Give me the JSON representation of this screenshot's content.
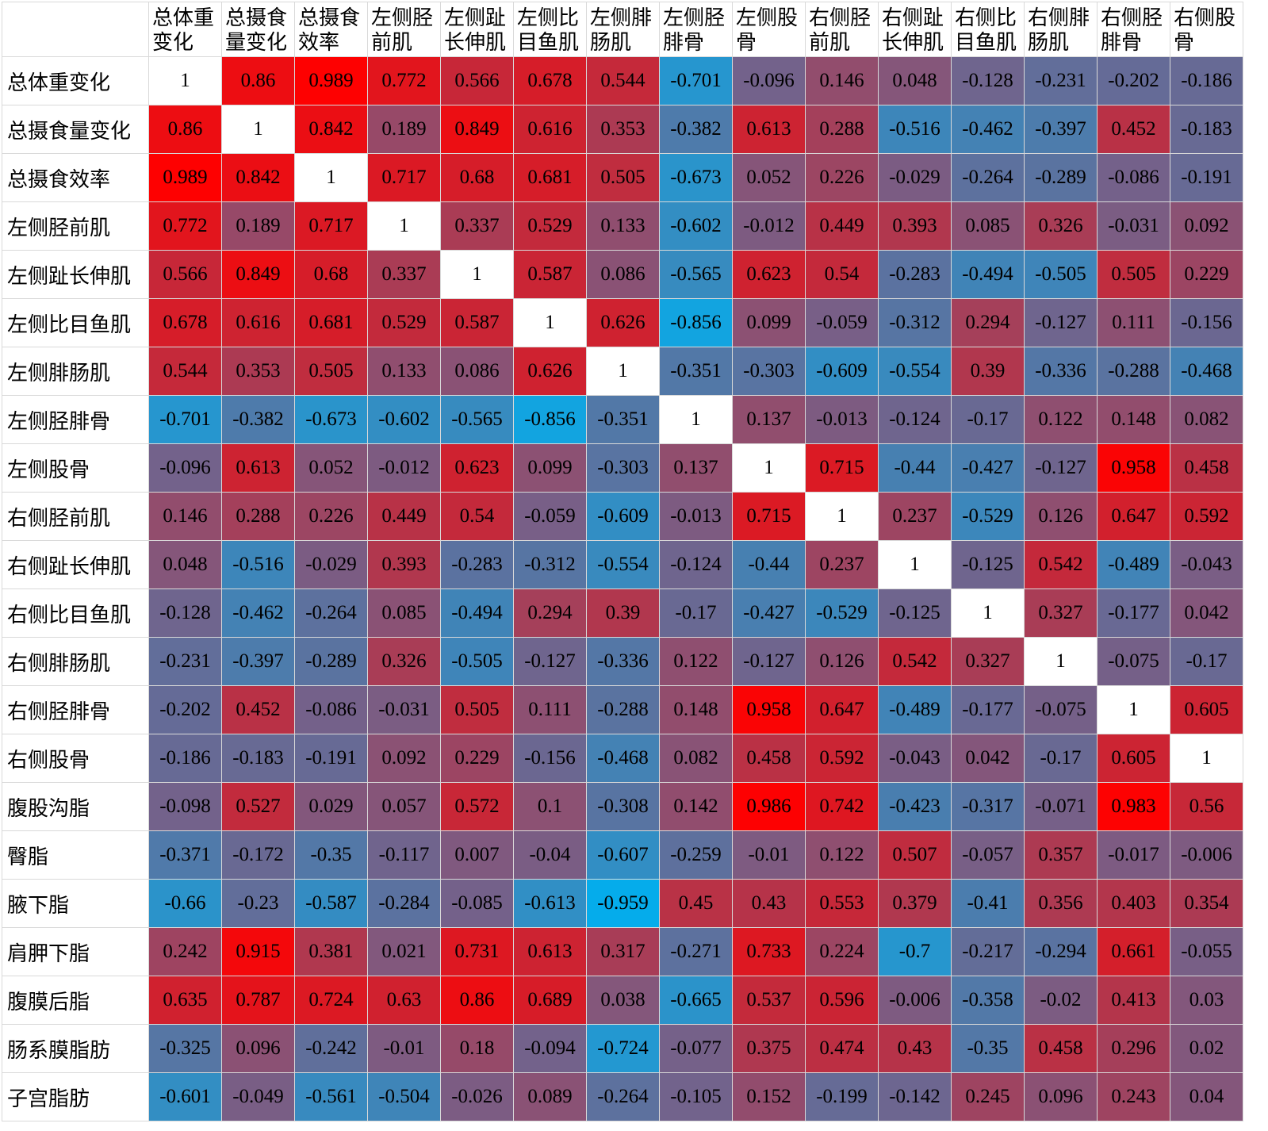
{
  "chart_data": {
    "type": "heatmap",
    "title": "",
    "color_scale": {
      "negative": "#00b0f0",
      "zero": "#7f5a80",
      "positive": "#ff0000",
      "diagonal": "#ffffff"
    },
    "grid": true,
    "columns": [
      "总体重变化",
      "总摄食量变化",
      "总摄食效率",
      "左侧胫前肌",
      "左侧趾长伸肌",
      "左侧比目鱼肌",
      "左侧腓肠肌",
      "左侧胫腓骨",
      "左侧股骨",
      "右侧胫前肌",
      "右侧趾长伸肌",
      "右侧比目鱼肌",
      "右侧腓肠肌",
      "右侧胫腓骨",
      "右侧股骨"
    ],
    "rows": [
      "总体重变化",
      "总摄食量变化",
      "总摄食效率",
      "左侧胫前肌",
      "左侧趾长伸肌",
      "左侧比目鱼肌",
      "左侧腓肠肌",
      "左侧胫腓骨",
      "左侧股骨",
      "右侧胫前肌",
      "右侧趾长伸肌",
      "右侧比目鱼肌",
      "右侧腓肠肌",
      "右侧胫腓骨",
      "右侧股骨",
      "腹股沟脂",
      "臀脂",
      "腋下脂",
      "肩胛下脂",
      "腹膜后脂",
      "肠系膜脂肪",
      "子宫脂肪"
    ],
    "values": [
      [
        "1",
        "0.86",
        "0.989",
        "0.772",
        "0.566",
        "0.678",
        "0.544",
        "-0.701",
        "-0.096",
        "0.146",
        "0.048",
        "-0.128",
        "-0.231",
        "-0.202",
        "-0.186"
      ],
      [
        "0.86",
        "1",
        "0.842",
        "0.189",
        "0.849",
        "0.616",
        "0.353",
        "-0.382",
        "0.613",
        "0.288",
        "-0.516",
        "-0.462",
        "-0.397",
        "0.452",
        "-0.183"
      ],
      [
        "0.989",
        "0.842",
        "1",
        "0.717",
        "0.68",
        "0.681",
        "0.505",
        "-0.673",
        "0.052",
        "0.226",
        "-0.029",
        "-0.264",
        "-0.289",
        "-0.086",
        "-0.191"
      ],
      [
        "0.772",
        "0.189",
        "0.717",
        "1",
        "0.337",
        "0.529",
        "0.133",
        "-0.602",
        "-0.012",
        "0.449",
        "0.393",
        "0.085",
        "0.326",
        "-0.031",
        "0.092"
      ],
      [
        "0.566",
        "0.849",
        "0.68",
        "0.337",
        "1",
        "0.587",
        "0.086",
        "-0.565",
        "0.623",
        "0.54",
        "-0.283",
        "-0.494",
        "-0.505",
        "0.505",
        "0.229"
      ],
      [
        "0.678",
        "0.616",
        "0.681",
        "0.529",
        "0.587",
        "1",
        "0.626",
        "-0.856",
        "0.099",
        "-0.059",
        "-0.312",
        "0.294",
        "-0.127",
        "0.111",
        "-0.156"
      ],
      [
        "0.544",
        "0.353",
        "0.505",
        "0.133",
        "0.086",
        "0.626",
        "1",
        "-0.351",
        "-0.303",
        "-0.609",
        "-0.554",
        "0.39",
        "-0.336",
        "-0.288",
        "-0.468"
      ],
      [
        "-0.701",
        "-0.382",
        "-0.673",
        "-0.602",
        "-0.565",
        "-0.856",
        "-0.351",
        "1",
        "0.137",
        "-0.013",
        "-0.124",
        "-0.17",
        "0.122",
        "0.148",
        "0.082"
      ],
      [
        "-0.096",
        "0.613",
        "0.052",
        "-0.012",
        "0.623",
        "0.099",
        "-0.303",
        "0.137",
        "1",
        "0.715",
        "-0.44",
        "-0.427",
        "-0.127",
        "0.958",
        "0.458"
      ],
      [
        "0.146",
        "0.288",
        "0.226",
        "0.449",
        "0.54",
        "-0.059",
        "-0.609",
        "-0.013",
        "0.715",
        "1",
        "0.237",
        "-0.529",
        "0.126",
        "0.647",
        "0.592"
      ],
      [
        "0.048",
        "-0.516",
        "-0.029",
        "0.393",
        "-0.283",
        "-0.312",
        "-0.554",
        "-0.124",
        "-0.44",
        "0.237",
        "1",
        "-0.125",
        "0.542",
        "-0.489",
        "-0.043"
      ],
      [
        "-0.128",
        "-0.462",
        "-0.264",
        "0.085",
        "-0.494",
        "0.294",
        "0.39",
        "-0.17",
        "-0.427",
        "-0.529",
        "-0.125",
        "1",
        "0.327",
        "-0.177",
        "0.042"
      ],
      [
        "-0.231",
        "-0.397",
        "-0.289",
        "0.326",
        "-0.505",
        "-0.127",
        "-0.336",
        "0.122",
        "-0.127",
        "0.126",
        "0.542",
        "0.327",
        "1",
        "-0.075",
        "-0.17"
      ],
      [
        "-0.202",
        "0.452",
        "-0.086",
        "-0.031",
        "0.505",
        "0.111",
        "-0.288",
        "0.148",
        "0.958",
        "0.647",
        "-0.489",
        "-0.177",
        "-0.075",
        "1",
        "0.605"
      ],
      [
        "-0.186",
        "-0.183",
        "-0.191",
        "0.092",
        "0.229",
        "-0.156",
        "-0.468",
        "0.082",
        "0.458",
        "0.592",
        "-0.043",
        "0.042",
        "-0.17",
        "0.605",
        "1"
      ],
      [
        "-0.098",
        "0.527",
        "0.029",
        "0.057",
        "0.572",
        "0.1",
        "-0.308",
        "0.142",
        "0.986",
        "0.742",
        "-0.423",
        "-0.317",
        "-0.071",
        "0.983",
        "0.56"
      ],
      [
        "-0.371",
        "-0.172",
        "-0.35",
        "-0.117",
        "0.007",
        "-0.04",
        "-0.607",
        "-0.259",
        "-0.01",
        "0.122",
        "0.507",
        "-0.057",
        "0.357",
        "-0.017",
        "-0.006"
      ],
      [
        "-0.66",
        "-0.23",
        "-0.587",
        "-0.284",
        "-0.085",
        "-0.613",
        "-0.959",
        "0.45",
        "0.43",
        "0.553",
        "0.379",
        "-0.41",
        "0.356",
        "0.403",
        "0.354"
      ],
      [
        "0.242",
        "0.915",
        "0.381",
        "0.021",
        "0.731",
        "0.613",
        "0.317",
        "-0.271",
        "0.733",
        "0.224",
        "-0.7",
        "-0.217",
        "-0.294",
        "0.661",
        "-0.055"
      ],
      [
        "0.635",
        "0.787",
        "0.724",
        "0.63",
        "0.86",
        "0.689",
        "0.038",
        "-0.665",
        "0.537",
        "0.596",
        "-0.006",
        "-0.358",
        "-0.02",
        "0.413",
        "0.03"
      ],
      [
        "-0.325",
        "0.096",
        "-0.242",
        "-0.01",
        "0.18",
        "-0.094",
        "-0.724",
        "-0.077",
        "0.375",
        "0.474",
        "0.43",
        "-0.35",
        "0.458",
        "0.296",
        "0.02"
      ],
      [
        "-0.601",
        "-0.049",
        "-0.561",
        "-0.504",
        "-0.026",
        "0.089",
        "-0.264",
        "-0.105",
        "0.152",
        "-0.199",
        "-0.142",
        "0.245",
        "0.096",
        "0.243",
        "0.04"
      ]
    ]
  }
}
